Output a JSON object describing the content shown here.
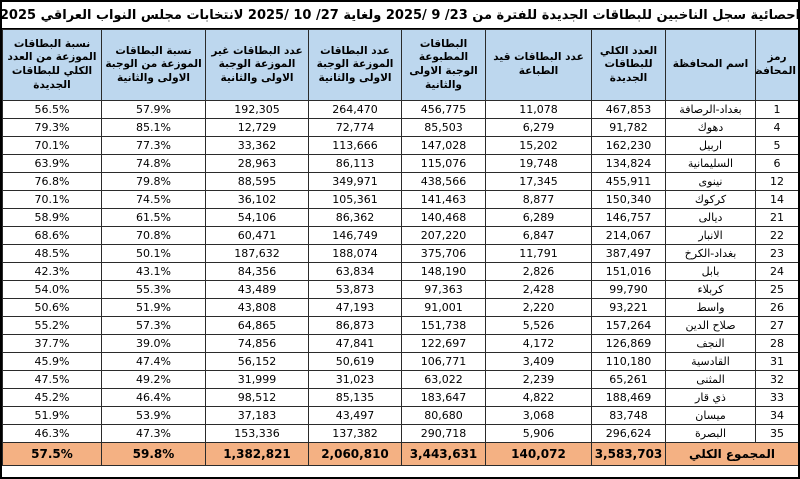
{
  "title": "احصائية سجل الناخبين للبطاقات الجديدة للفترة من  23/ 9 /2025 ولغاية  27/ 10 /2025 لانتخابات مجلس النواب العراقي 2025",
  "colors": {
    "header_bg": "#BDD7EE",
    "totals_bg": "#F4B183",
    "border": "#000000",
    "row_bg": "#FFFFFF"
  },
  "table": {
    "columns": [
      {
        "key": "code",
        "label": "رمز المحافظة"
      },
      {
        "key": "name",
        "label": "اسم المحافظة"
      },
      {
        "key": "total_new_cards",
        "label": "العدد الكلي للبطاقات الجديدة"
      },
      {
        "key": "cards_in_printing",
        "label": "عدد البطاقات قيد الطباعة"
      },
      {
        "key": "printed_cards_batch_1_2",
        "label": "البطاقات المطبوعة الوجبة الاولى والثانية"
      },
      {
        "key": "distributed_cards_batch_1_2",
        "label": "عدد البطاقات الموزعة الوجبة الاولى والثانية"
      },
      {
        "key": "undistributed_cards_batch_1_2",
        "label": "عدد البطاقات غير الموزعة الوجبة الاولى والثانية"
      },
      {
        "key": "pct_distributed_of_batches",
        "label": "نسبة البطاقات الموزعة من الوجبة الاولى والثانية"
      },
      {
        "key": "pct_distributed_of_total",
        "label": "نسبة البطاقات الموزعة من العدد الكلي للبطاقات الجديدة"
      }
    ],
    "rows": [
      {
        "c": [
          "1",
          "بغداد-الرصافة",
          "467,853",
          "11,078",
          "456,775",
          "264,470",
          "192,305",
          "57.9%",
          "56.5%"
        ]
      },
      {
        "c": [
          "4",
          "دهوك",
          "91,782",
          "6,279",
          "85,503",
          "72,774",
          "12,729",
          "85.1%",
          "79.3%"
        ]
      },
      {
        "c": [
          "5",
          "اربيل",
          "162,230",
          "15,202",
          "147,028",
          "113,666",
          "33,362",
          "77.3%",
          "70.1%"
        ]
      },
      {
        "c": [
          "6",
          "السليمانية",
          "134,824",
          "19,748",
          "115,076",
          "86,113",
          "28,963",
          "74.8%",
          "63.9%"
        ]
      },
      {
        "c": [
          "12",
          "نينوى",
          "455,911",
          "17,345",
          "438,566",
          "349,971",
          "88,595",
          "79.8%",
          "76.8%"
        ]
      },
      {
        "c": [
          "14",
          "كركوك",
          "150,340",
          "8,877",
          "141,463",
          "105,361",
          "36,102",
          "74.5%",
          "70.1%"
        ]
      },
      {
        "c": [
          "21",
          "ديالى",
          "146,757",
          "6,289",
          "140,468",
          "86,362",
          "54,106",
          "61.5%",
          "58.9%"
        ]
      },
      {
        "c": [
          "22",
          "الانبار",
          "214,067",
          "6,847",
          "207,220",
          "146,749",
          "60,471",
          "70.8%",
          "68.6%"
        ]
      },
      {
        "c": [
          "23",
          "بغداد-الكرخ",
          "387,497",
          "11,791",
          "375,706",
          "188,074",
          "187,632",
          "50.1%",
          "48.5%"
        ]
      },
      {
        "c": [
          "24",
          "بابل",
          "151,016",
          "2,826",
          "148,190",
          "63,834",
          "84,356",
          "43.1%",
          "42.3%"
        ]
      },
      {
        "c": [
          "25",
          "كربلاء",
          "99,790",
          "2,428",
          "97,363",
          "53,873",
          "43,489",
          "55.3%",
          "54.0%"
        ]
      },
      {
        "c": [
          "26",
          "واسط",
          "93,221",
          "2,220",
          "91,001",
          "47,193",
          "43,808",
          "51.9%",
          "50.6%"
        ]
      },
      {
        "c": [
          "27",
          "صلاح الدين",
          "157,264",
          "5,526",
          "151,738",
          "86,873",
          "64,865",
          "57.3%",
          "55.2%"
        ]
      },
      {
        "c": [
          "28",
          "النجف",
          "126,869",
          "4,172",
          "122,697",
          "47,841",
          "74,856",
          "39.0%",
          "37.7%"
        ]
      },
      {
        "c": [
          "31",
          "القادسية",
          "110,180",
          "3,409",
          "106,771",
          "50,619",
          "56,152",
          "47.4%",
          "45.9%"
        ]
      },
      {
        "c": [
          "32",
          "المثنى",
          "65,261",
          "2,239",
          "63,022",
          "31,023",
          "31,999",
          "49.2%",
          "47.5%"
        ]
      },
      {
        "c": [
          "33",
          "ذي قار",
          "188,469",
          "4,822",
          "183,647",
          "85,135",
          "98,512",
          "46.4%",
          "45.2%"
        ]
      },
      {
        "c": [
          "34",
          "ميسان",
          "83,748",
          "3,068",
          "80,680",
          "43,497",
          "37,183",
          "53.9%",
          "51.9%"
        ]
      },
      {
        "c": [
          "35",
          "البصرة",
          "296,624",
          "5,906",
          "290,718",
          "137,382",
          "153,336",
          "47.3%",
          "46.3%"
        ]
      }
    ],
    "totals": {
      "label": "المجموع الكلي",
      "c": [
        "3,583,703",
        "140,072",
        "3,443,631",
        "2,060,810",
        "1,382,821",
        "59.8%",
        "57.5%"
      ]
    }
  }
}
